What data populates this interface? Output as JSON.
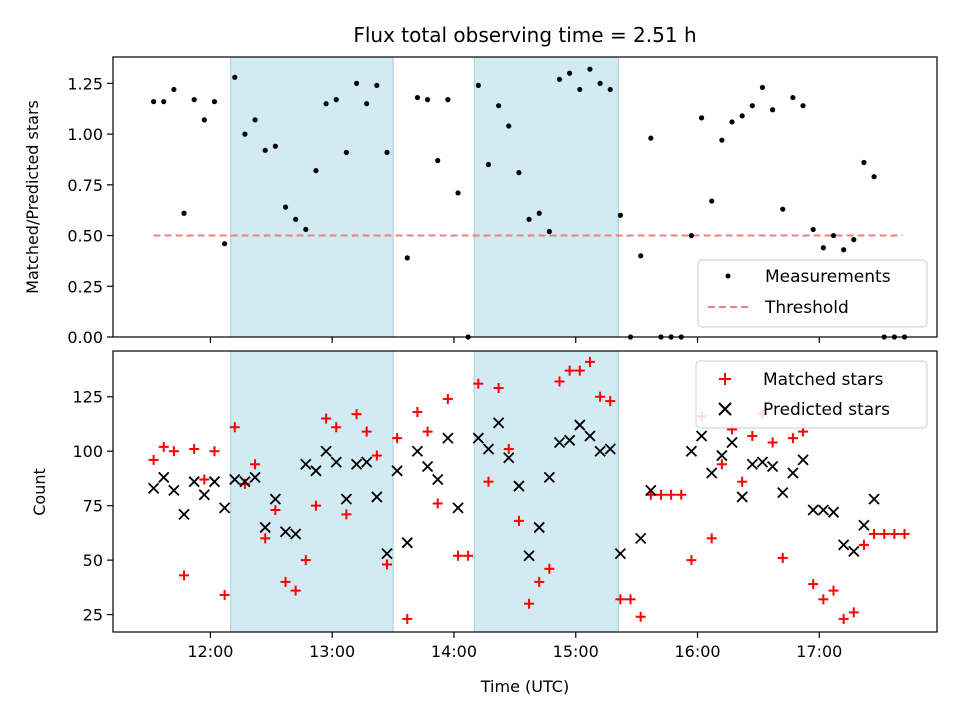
{
  "chart_data": [
    {
      "type": "scatter",
      "title": "Flux total observing time = 2.51 h",
      "ylabel": "Matched/Predicted stars",
      "xlabel": "",
      "xlim": [
        "11:12",
        "17:58"
      ],
      "ylim": [
        0,
        1.38
      ],
      "x_ticks": [
        "12:00",
        "13:00",
        "14:00",
        "15:00",
        "16:00",
        "17:00"
      ],
      "y_ticks": [
        "0.00",
        "0.25",
        "0.50",
        "0.75",
        "1.00",
        "1.25"
      ],
      "shaded_regions": [
        [
          "12:10",
          "13:30"
        ],
        [
          "14:10",
          "15:21"
        ]
      ],
      "shade_color": "#add8e6",
      "legend_position": "lower right",
      "threshold": {
        "name": "Threshold",
        "y": 0.5,
        "x_range": [
          "11:32",
          "17:41"
        ],
        "color": "#f08080"
      },
      "series": [
        {
          "name": "Measurements",
          "color": "#000000",
          "points": [
            [
              "11:32",
              1.16
            ],
            [
              "11:37",
              1.16
            ],
            [
              "11:42",
              1.22
            ],
            [
              "11:47",
              0.61
            ],
            [
              "11:52",
              1.17
            ],
            [
              "11:57",
              1.07
            ],
            [
              "12:02",
              1.16
            ],
            [
              "12:07",
              0.46
            ],
            [
              "12:12",
              1.28
            ],
            [
              "12:17",
              1.0
            ],
            [
              "12:22",
              1.07
            ],
            [
              "12:27",
              0.92
            ],
            [
              "12:32",
              0.94
            ],
            [
              "12:37",
              0.64
            ],
            [
              "12:42",
              0.58
            ],
            [
              "12:47",
              0.53
            ],
            [
              "12:52",
              0.82
            ],
            [
              "12:57",
              1.15
            ],
            [
              "13:02",
              1.17
            ],
            [
              "13:07",
              0.91
            ],
            [
              "13:12",
              1.25
            ],
            [
              "13:17",
              1.15
            ],
            [
              "13:22",
              1.24
            ],
            [
              "13:27",
              0.91
            ],
            [
              "13:37",
              0.39
            ],
            [
              "13:42",
              1.18
            ],
            [
              "13:47",
              1.17
            ],
            [
              "13:52",
              0.87
            ],
            [
              "13:57",
              1.17
            ],
            [
              "14:02",
              0.71
            ],
            [
              "14:07",
              0.0
            ],
            [
              "14:12",
              1.24
            ],
            [
              "14:17",
              0.85
            ],
            [
              "14:22",
              1.14
            ],
            [
              "14:27",
              1.04
            ],
            [
              "14:32",
              0.81
            ],
            [
              "14:37",
              0.58
            ],
            [
              "14:42",
              0.61
            ],
            [
              "14:47",
              0.52
            ],
            [
              "14:52",
              1.27
            ],
            [
              "14:57",
              1.3
            ],
            [
              "15:02",
              1.22
            ],
            [
              "15:07",
              1.32
            ],
            [
              "15:12",
              1.25
            ],
            [
              "15:17",
              1.22
            ],
            [
              "15:22",
              0.6
            ],
            [
              "15:27",
              0.0
            ],
            [
              "15:32",
              0.4
            ],
            [
              "15:37",
              0.98
            ],
            [
              "15:42",
              0.0
            ],
            [
              "15:47",
              0.0
            ],
            [
              "15:52",
              0.0
            ],
            [
              "15:57",
              0.5
            ],
            [
              "16:02",
              1.08
            ],
            [
              "16:07",
              0.67
            ],
            [
              "16:12",
              0.97
            ],
            [
              "16:17",
              1.06
            ],
            [
              "16:22",
              1.09
            ],
            [
              "16:27",
              1.14
            ],
            [
              "16:32",
              1.23
            ],
            [
              "16:37",
              1.12
            ],
            [
              "16:42",
              0.63
            ],
            [
              "16:47",
              1.18
            ],
            [
              "16:52",
              1.14
            ],
            [
              "16:57",
              0.53
            ],
            [
              "17:02",
              0.44
            ],
            [
              "17:07",
              0.5
            ],
            [
              "17:12",
              0.43
            ],
            [
              "17:17",
              0.48
            ],
            [
              "17:22",
              0.86
            ],
            [
              "17:27",
              0.79
            ],
            [
              "17:32",
              0.0
            ],
            [
              "17:37",
              0.0
            ],
            [
              "17:42",
              0.0
            ]
          ]
        }
      ]
    },
    {
      "type": "scatter",
      "title": "",
      "ylabel": "Count",
      "xlabel": "Time (UTC)",
      "xlim": [
        "11:12",
        "17:58"
      ],
      "ylim": [
        17,
        146
      ],
      "x_ticks": [
        "12:00",
        "13:00",
        "14:00",
        "15:00",
        "16:00",
        "17:00"
      ],
      "y_ticks": [
        "25",
        "50",
        "75",
        "100",
        "125"
      ],
      "shaded_regions": [
        [
          "12:10",
          "13:30"
        ],
        [
          "14:10",
          "15:21"
        ]
      ],
      "shade_color": "#add8e6",
      "legend_position": "upper right",
      "series": [
        {
          "name": "Matched stars",
          "color": "#ff0000",
          "marker": "plus",
          "points": [
            [
              "11:32",
              96
            ],
            [
              "11:37",
              102
            ],
            [
              "11:42",
              100
            ],
            [
              "11:47",
              43
            ],
            [
              "11:52",
              101
            ],
            [
              "11:57",
              87
            ],
            [
              "12:02",
              100
            ],
            [
              "12:07",
              34
            ],
            [
              "12:12",
              111
            ],
            [
              "12:17",
              85
            ],
            [
              "12:22",
              94
            ],
            [
              "12:27",
              60
            ],
            [
              "12:32",
              73
            ],
            [
              "12:37",
              40
            ],
            [
              "12:42",
              36
            ],
            [
              "12:47",
              50
            ],
            [
              "12:52",
              75
            ],
            [
              "12:57",
              115
            ],
            [
              "13:02",
              111
            ],
            [
              "13:07",
              71
            ],
            [
              "13:12",
              117
            ],
            [
              "13:17",
              109
            ],
            [
              "13:22",
              98
            ],
            [
              "13:27",
              48
            ],
            [
              "13:32",
              106
            ],
            [
              "13:37",
              23
            ],
            [
              "13:42",
              118
            ],
            [
              "13:47",
              109
            ],
            [
              "13:52",
              76
            ],
            [
              "13:57",
              124
            ],
            [
              "14:02",
              52
            ],
            [
              "14:07",
              52
            ],
            [
              "14:12",
              131
            ],
            [
              "14:17",
              86
            ],
            [
              "14:22",
              129
            ],
            [
              "14:27",
              101
            ],
            [
              "14:32",
              68
            ],
            [
              "14:37",
              30
            ],
            [
              "14:42",
              40
            ],
            [
              "14:47",
              46
            ],
            [
              "14:52",
              132
            ],
            [
              "14:57",
              137
            ],
            [
              "15:02",
              137
            ],
            [
              "15:07",
              141
            ],
            [
              "15:12",
              125
            ],
            [
              "15:17",
              123
            ],
            [
              "15:22",
              32
            ],
            [
              "15:27",
              32
            ],
            [
              "15:32",
              24
            ],
            [
              "15:37",
              80
            ],
            [
              "15:42",
              80
            ],
            [
              "15:47",
              80
            ],
            [
              "15:52",
              80
            ],
            [
              "15:57",
              50
            ],
            [
              "16:02",
              116
            ],
            [
              "16:07",
              60
            ],
            [
              "16:12",
              94
            ],
            [
              "16:17",
              110
            ],
            [
              "16:22",
              86
            ],
            [
              "16:27",
              107
            ],
            [
              "16:32",
              117
            ],
            [
              "16:37",
              104
            ],
            [
              "16:42",
              51
            ],
            [
              "16:47",
              106
            ],
            [
              "16:52",
              109
            ],
            [
              "16:57",
              39
            ],
            [
              "17:02",
              32
            ],
            [
              "17:07",
              36
            ],
            [
              "17:12",
              23
            ],
            [
              "17:17",
              26
            ],
            [
              "17:22",
              57
            ],
            [
              "17:27",
              62
            ],
            [
              "17:32",
              62
            ],
            [
              "17:37",
              62
            ],
            [
              "17:42",
              62
            ]
          ]
        },
        {
          "name": "Predicted stars",
          "color": "#000000",
          "marker": "x",
          "points": [
            [
              "11:32",
              83
            ],
            [
              "11:37",
              88
            ],
            [
              "11:42",
              82
            ],
            [
              "11:47",
              71
            ],
            [
              "11:52",
              86
            ],
            [
              "11:57",
              80
            ],
            [
              "12:02",
              86
            ],
            [
              "12:07",
              74
            ],
            [
              "12:12",
              87
            ],
            [
              "12:17",
              86
            ],
            [
              "12:22",
              88
            ],
            [
              "12:27",
              65
            ],
            [
              "12:32",
              78
            ],
            [
              "12:37",
              63
            ],
            [
              "12:42",
              62
            ],
            [
              "12:47",
              94
            ],
            [
              "12:52",
              91
            ],
            [
              "12:57",
              100
            ],
            [
              "13:02",
              95
            ],
            [
              "13:07",
              78
            ],
            [
              "13:12",
              94
            ],
            [
              "13:17",
              95
            ],
            [
              "13:22",
              79
            ],
            [
              "13:27",
              53
            ],
            [
              "13:32",
              91
            ],
            [
              "13:37",
              58
            ],
            [
              "13:42",
              100
            ],
            [
              "13:47",
              93
            ],
            [
              "13:52",
              87
            ],
            [
              "13:57",
              106
            ],
            [
              "14:02",
              74
            ],
            [
              "14:12",
              106
            ],
            [
              "14:17",
              101
            ],
            [
              "14:22",
              113
            ],
            [
              "14:27",
              97
            ],
            [
              "14:32",
              84
            ],
            [
              "14:37",
              52
            ],
            [
              "14:42",
              65
            ],
            [
              "14:47",
              88
            ],
            [
              "14:52",
              104
            ],
            [
              "14:57",
              105
            ],
            [
              "15:02",
              112
            ],
            [
              "15:07",
              107
            ],
            [
              "15:12",
              100
            ],
            [
              "15:17",
              101
            ],
            [
              "15:22",
              53
            ],
            [
              "15:32",
              60
            ],
            [
              "15:37",
              82
            ],
            [
              "15:57",
              100
            ],
            [
              "16:02",
              107
            ],
            [
              "16:07",
              90
            ],
            [
              "16:12",
              98
            ],
            [
              "16:17",
              104
            ],
            [
              "16:22",
              79
            ],
            [
              "16:27",
              94
            ],
            [
              "16:32",
              95
            ],
            [
              "16:37",
              93
            ],
            [
              "16:42",
              81
            ],
            [
              "16:47",
              90
            ],
            [
              "16:52",
              96
            ],
            [
              "16:57",
              73
            ],
            [
              "17:02",
              73
            ],
            [
              "17:07",
              72
            ],
            [
              "17:12",
              57
            ],
            [
              "17:17",
              54
            ],
            [
              "17:22",
              66
            ],
            [
              "17:27",
              78
            ]
          ]
        }
      ]
    }
  ]
}
